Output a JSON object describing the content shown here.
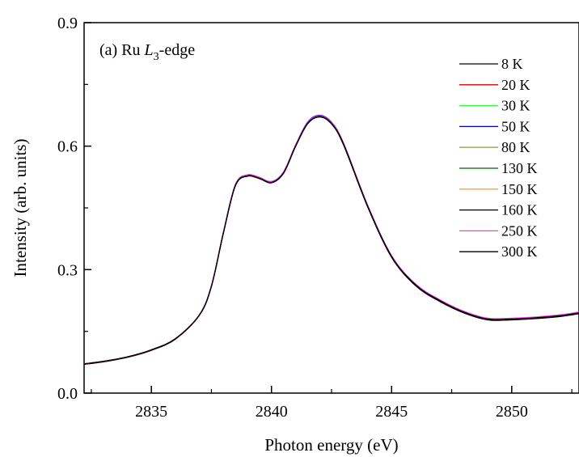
{
  "chart_data": {
    "type": "line",
    "title": "",
    "annotation": {
      "prefix": "(a) Ru ",
      "italic": "L",
      "subscript": "3",
      "suffix": "-edge"
    },
    "xlabel": "Photon energy (eV)",
    "ylabel": "Intensity (arb. units)",
    "xlim": [
      2832.2,
      2852.8
    ],
    "ylim": [
      0.0,
      0.9
    ],
    "xticks": [
      2835,
      2840,
      2845,
      2850
    ],
    "yticks": [
      0.0,
      0.3,
      0.6,
      0.9
    ],
    "ytick_labels": [
      "0.0",
      "0.3",
      "0.6",
      "0.9"
    ],
    "legend_position": "top-right",
    "grid": false,
    "x": [
      2832.2,
      2833,
      2834,
      2835,
      2836,
      2837,
      2837.5,
      2838,
      2838.5,
      2839,
      2839.5,
      2840,
      2840.5,
      2841,
      2841.5,
      2842,
      2842.5,
      2843,
      2844,
      2845,
      2846,
      2847,
      2848,
      2849,
      2850,
      2851,
      2852,
      2852.8
    ],
    "series": [
      {
        "name": "8 K",
        "color": "#000000",
        "values": [
          0.071,
          0.077,
          0.088,
          0.105,
          0.132,
          0.19,
          0.26,
          0.39,
          0.505,
          0.528,
          0.522,
          0.512,
          0.535,
          0.6,
          0.655,
          0.672,
          0.655,
          0.605,
          0.455,
          0.332,
          0.263,
          0.225,
          0.197,
          0.18,
          0.18,
          0.183,
          0.188,
          0.195
        ]
      },
      {
        "name": "20 K",
        "color": "#e00000",
        "values": [
          0.071,
          0.077,
          0.088,
          0.105,
          0.132,
          0.19,
          0.26,
          0.39,
          0.506,
          0.529,
          0.523,
          0.513,
          0.536,
          0.601,
          0.657,
          0.674,
          0.657,
          0.606,
          0.455,
          0.332,
          0.263,
          0.225,
          0.197,
          0.18,
          0.18,
          0.183,
          0.188,
          0.195
        ]
      },
      {
        "name": "30 K",
        "color": "#33ff33",
        "values": [
          0.071,
          0.077,
          0.088,
          0.105,
          0.132,
          0.19,
          0.26,
          0.389,
          0.505,
          0.528,
          0.522,
          0.512,
          0.535,
          0.6,
          0.656,
          0.673,
          0.656,
          0.605,
          0.455,
          0.332,
          0.263,
          0.225,
          0.197,
          0.18,
          0.18,
          0.183,
          0.188,
          0.195
        ]
      },
      {
        "name": "50 K",
        "color": "#0000cc",
        "values": [
          0.071,
          0.077,
          0.088,
          0.105,
          0.132,
          0.19,
          0.261,
          0.391,
          0.507,
          0.53,
          0.524,
          0.514,
          0.537,
          0.602,
          0.658,
          0.675,
          0.658,
          0.607,
          0.456,
          0.333,
          0.264,
          0.226,
          0.198,
          0.181,
          0.181,
          0.184,
          0.189,
          0.196
        ]
      },
      {
        "name": "80 K",
        "color": "#99a060",
        "values": [
          0.071,
          0.077,
          0.088,
          0.105,
          0.132,
          0.19,
          0.26,
          0.39,
          0.505,
          0.528,
          0.522,
          0.512,
          0.535,
          0.6,
          0.655,
          0.672,
          0.655,
          0.604,
          0.454,
          0.331,
          0.262,
          0.224,
          0.196,
          0.179,
          0.179,
          0.182,
          0.187,
          0.194
        ]
      },
      {
        "name": "130 K",
        "color": "#006600",
        "values": [
          0.071,
          0.077,
          0.088,
          0.105,
          0.132,
          0.19,
          0.26,
          0.39,
          0.505,
          0.528,
          0.522,
          0.512,
          0.535,
          0.6,
          0.655,
          0.672,
          0.655,
          0.604,
          0.454,
          0.331,
          0.262,
          0.224,
          0.196,
          0.179,
          0.179,
          0.182,
          0.187,
          0.194
        ]
      },
      {
        "name": "150 K",
        "color": "#ffa040",
        "values": [
          0.07,
          0.076,
          0.087,
          0.104,
          0.131,
          0.189,
          0.259,
          0.389,
          0.504,
          0.527,
          0.521,
          0.511,
          0.534,
          0.599,
          0.654,
          0.671,
          0.654,
          0.603,
          0.453,
          0.33,
          0.261,
          0.223,
          0.195,
          0.178,
          0.178,
          0.181,
          0.186,
          0.193
        ]
      },
      {
        "name": "160 K",
        "color": "#000000",
        "values": [
          0.07,
          0.076,
          0.087,
          0.104,
          0.131,
          0.189,
          0.259,
          0.389,
          0.504,
          0.527,
          0.521,
          0.511,
          0.534,
          0.599,
          0.654,
          0.671,
          0.654,
          0.603,
          0.453,
          0.33,
          0.261,
          0.223,
          0.195,
          0.178,
          0.178,
          0.181,
          0.186,
          0.193
        ]
      },
      {
        "name": "250 K",
        "color": "#ff33ff",
        "values": [
          0.071,
          0.077,
          0.088,
          0.105,
          0.132,
          0.19,
          0.261,
          0.391,
          0.507,
          0.53,
          0.524,
          0.514,
          0.537,
          0.602,
          0.657,
          0.674,
          0.657,
          0.607,
          0.457,
          0.334,
          0.265,
          0.227,
          0.199,
          0.182,
          0.182,
          0.185,
          0.19,
          0.197
        ]
      },
      {
        "name": "300 K",
        "color": "#000000",
        "values": [
          0.071,
          0.077,
          0.088,
          0.105,
          0.132,
          0.19,
          0.26,
          0.39,
          0.505,
          0.528,
          0.522,
          0.512,
          0.535,
          0.6,
          0.655,
          0.672,
          0.655,
          0.605,
          0.455,
          0.332,
          0.263,
          0.225,
          0.197,
          0.18,
          0.18,
          0.183,
          0.188,
          0.195
        ]
      }
    ]
  }
}
